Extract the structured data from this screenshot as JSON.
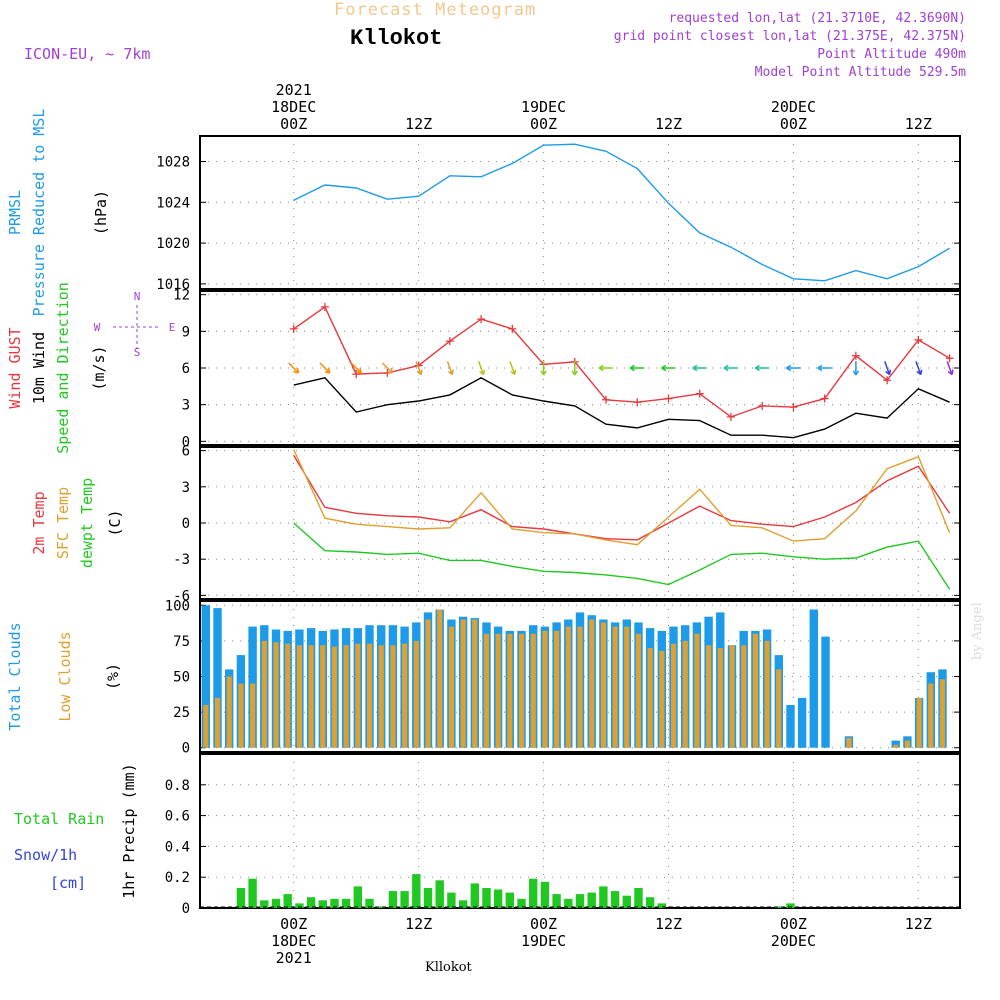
{
  "header": {
    "title": "Forecast Meteogram",
    "location": "Kllokot",
    "model": "ICON-EU, ~ 7km",
    "requested": "requested lon,lat (21.3710E, 42.3690N)",
    "grid_point": "grid point closest lon,lat (21.375E, 42.375N)",
    "point_altitude": "Point Altitude 490m",
    "model_altitude": "Model Point Altitude 529.5m",
    "watermark": "by Angel",
    "footer_location": "Kllokot"
  },
  "colors": {
    "blue": "#1e9be8",
    "red": "#e8383d",
    "orange": "#e0a030",
    "green": "#22c822",
    "purple": "#a040d0",
    "snow": "#3344dd"
  },
  "chart_data": [
    {
      "type": "line",
      "panel": "pressure",
      "ylabels": [
        "PRMSL",
        "Pressure Reduced to MSL",
        "(hPa)"
      ],
      "ylim": [
        1015.5,
        1030.5
      ],
      "yticks": [
        1016,
        1020,
        1024,
        1028
      ],
      "x": [
        0,
        3,
        6,
        9,
        12,
        15,
        18,
        21,
        24,
        27,
        30,
        33,
        36,
        39,
        42,
        45,
        48,
        51,
        54,
        57,
        60,
        63
      ],
      "series": [
        {
          "name": "PRMSL",
          "color": "blue",
          "values": [
            1024.2,
            1025.7,
            1025.4,
            1024.3,
            1024.6,
            1026.6,
            1026.5,
            1027.8,
            1029.6,
            1029.7,
            1029.0,
            1027.3,
            1023.9,
            1021.0,
            1019.6,
            1017.9,
            1016.5,
            1016.3,
            1017.3,
            1016.5,
            1017.7,
            1019.5
          ]
        }
      ]
    },
    {
      "type": "line",
      "panel": "wind",
      "ylabels": [
        "Wind GUST",
        "10m Wind",
        "Speed and Direction",
        "(m/s)"
      ],
      "direction_legend": [
        "N",
        "S",
        "W",
        "E"
      ],
      "ylim": [
        -0.3,
        12.3
      ],
      "yticks": [
        0,
        3,
        6,
        9,
        12
      ],
      "x": [
        0,
        3,
        6,
        9,
        12,
        15,
        18,
        21,
        24,
        27,
        30,
        33,
        36,
        39,
        42,
        45,
        48,
        51,
        54,
        57,
        60,
        63
      ],
      "series": [
        {
          "name": "Wind GUST",
          "color": "red",
          "values": [
            9.2,
            11.0,
            5.5,
            5.6,
            6.2,
            8.2,
            10.0,
            9.2,
            6.3,
            6.5,
            3.4,
            3.2,
            3.5,
            3.9,
            2.0,
            2.9,
            2.8,
            3.5,
            7.0,
            5.0,
            8.3,
            6.8
          ]
        },
        {
          "name": "10m Wind",
          "color": "black",
          "values": [
            4.6,
            5.2,
            2.4,
            3.0,
            3.3,
            3.8,
            5.2,
            3.8,
            3.3,
            2.9,
            1.4,
            1.1,
            1.8,
            1.7,
            0.5,
            0.5,
            0.3,
            1.0,
            2.3,
            1.9,
            4.3,
            3.2
          ]
        }
      ],
      "wind_dir_deg": [
        45,
        45,
        45,
        45,
        20,
        20,
        20,
        20,
        0,
        0,
        270,
        270,
        270,
        270,
        270,
        270,
        270,
        270,
        0,
        20,
        20,
        20
      ]
    },
    {
      "type": "line",
      "panel": "temperature",
      "ylabels": [
        "2m Temp",
        "SFC Temp",
        "dewpt Temp",
        "(C)"
      ],
      "ylim": [
        -6.3,
        6.3
      ],
      "yticks": [
        -6,
        -3,
        0,
        3,
        6
      ],
      "x": [
        0,
        3,
        6,
        9,
        12,
        15,
        18,
        21,
        24,
        27,
        30,
        33,
        36,
        39,
        42,
        45,
        48,
        51,
        54,
        57,
        60,
        63
      ],
      "series": [
        {
          "name": "2m Temp",
          "color": "red",
          "values": [
            5.6,
            1.3,
            0.8,
            0.6,
            0.5,
            0.1,
            1.1,
            -0.3,
            -0.5,
            -0.9,
            -1.3,
            -1.4,
            0.0,
            1.4,
            0.2,
            -0.1,
            -0.3,
            0.5,
            1.7,
            3.5,
            4.7,
            0.8
          ]
        },
        {
          "name": "SFC Temp",
          "color": "orange",
          "values": [
            6.1,
            0.4,
            -0.1,
            -0.3,
            -0.5,
            -0.4,
            2.5,
            -0.5,
            -0.8,
            -0.9,
            -1.4,
            -1.8,
            0.5,
            2.8,
            -0.2,
            -0.4,
            -1.5,
            -1.3,
            1.0,
            4.5,
            5.5,
            -0.8
          ]
        },
        {
          "name": "dewpt Temp",
          "color": "green",
          "values": [
            0.0,
            -2.3,
            -2.4,
            -2.6,
            -2.5,
            -3.1,
            -3.1,
            -3.6,
            -4.0,
            -4.1,
            -4.3,
            -4.6,
            -5.1,
            -3.9,
            -2.6,
            -2.5,
            -2.8,
            -3.0,
            -2.9,
            -2.0,
            -1.5,
            -5.5
          ]
        }
      ]
    },
    {
      "type": "bar",
      "panel": "clouds",
      "ylabels": [
        "Total Clouds",
        "Low Clouds",
        "(%)"
      ],
      "ylim": [
        -3,
        103
      ],
      "yticks": [
        0,
        25,
        50,
        75,
        100
      ],
      "x": [
        0,
        1,
        2,
        3,
        4,
        5,
        6,
        7,
        8,
        9,
        10,
        11,
        12,
        13,
        14,
        15,
        16,
        17,
        18,
        19,
        20,
        21,
        22,
        23,
        24,
        25,
        26,
        27,
        28,
        29,
        30,
        31,
        32,
        33,
        34,
        35,
        36,
        37,
        38,
        39,
        40,
        41,
        42,
        43,
        44,
        45,
        46,
        47,
        48,
        49,
        50,
        51,
        52,
        53,
        54,
        55,
        56,
        57,
        58,
        59,
        60,
        61,
        62,
        63
      ],
      "series": [
        {
          "name": "Total Clouds",
          "color": "blue",
          "values": [
            100,
            98,
            55,
            65,
            85,
            86,
            83,
            82,
            83,
            84,
            82,
            83,
            84,
            84,
            86,
            86,
            86,
            85,
            88,
            95,
            97,
            90,
            92,
            91,
            88,
            85,
            82,
            82,
            86,
            85,
            88,
            90,
            95,
            93,
            90,
            88,
            90,
            88,
            84,
            82,
            85,
            86,
            88,
            92,
            95,
            72,
            82,
            82,
            83,
            65,
            30,
            35,
            97,
            78,
            0,
            8,
            0,
            0,
            0,
            5,
            8,
            35,
            53,
            55
          ]
        },
        {
          "name": "Low Clouds",
          "color": "orange",
          "values": [
            30,
            35,
            50,
            45,
            45,
            75,
            74,
            73,
            72,
            72,
            72,
            71,
            72,
            73,
            73,
            72,
            72,
            73,
            75,
            90,
            97,
            85,
            90,
            90,
            80,
            80,
            80,
            80,
            80,
            82,
            82,
            85,
            85,
            90,
            88,
            85,
            85,
            80,
            70,
            68,
            73,
            75,
            80,
            72,
            70,
            72,
            72,
            80,
            75,
            55,
            0,
            0,
            0,
            0,
            0,
            7,
            0,
            0,
            0,
            2,
            5,
            35,
            45,
            48
          ]
        }
      ]
    },
    {
      "type": "bar",
      "panel": "precip",
      "ylabels": [
        "Total Rain",
        "Snow/1h",
        "[cm]",
        "1hr Precip (mm)"
      ],
      "ylim": [
        0,
        1.0
      ],
      "yticks": [
        0,
        0.2,
        0.4,
        0.6,
        0.8
      ],
      "x": [
        0,
        1,
        2,
        3,
        4,
        5,
        6,
        7,
        8,
        9,
        10,
        11,
        12,
        13,
        14,
        15,
        16,
        17,
        18,
        19,
        20,
        21,
        22,
        23,
        24,
        25,
        26,
        27,
        28,
        29,
        30,
        31,
        32,
        33,
        34,
        35,
        36,
        37,
        38,
        39,
        40,
        41,
        42,
        43,
        44,
        45,
        46,
        47,
        48,
        49,
        50,
        51,
        52,
        53,
        54,
        55,
        56,
        57,
        58,
        59,
        60,
        61,
        62,
        63
      ],
      "series": [
        {
          "name": "Total Rain",
          "color": "green",
          "values": [
            0,
            0,
            0,
            0.13,
            0.19,
            0.05,
            0.06,
            0.09,
            0.03,
            0.07,
            0.05,
            0.06,
            0.06,
            0.14,
            0.06,
            0.01,
            0.11,
            0.11,
            0.22,
            0.13,
            0.18,
            0.1,
            0.05,
            0.16,
            0.13,
            0.12,
            0.1,
            0.06,
            0.19,
            0.17,
            0.09,
            0.06,
            0.09,
            0.1,
            0.14,
            0.11,
            0.08,
            0.13,
            0.07,
            0.03,
            0,
            0,
            0,
            0,
            0,
            0,
            0,
            0,
            0,
            0.01,
            0.03,
            0,
            0,
            0,
            0,
            0,
            0,
            0,
            0,
            0,
            0,
            0,
            0,
            0
          ]
        },
        {
          "name": "Snow/1h",
          "color": "snow",
          "values": [
            0,
            0,
            0,
            0,
            0,
            0,
            0,
            0,
            0,
            0,
            0,
            0,
            0,
            0,
            0,
            0,
            0,
            0,
            0,
            0,
            0,
            0,
            0,
            0,
            0,
            0,
            0,
            0,
            0,
            0,
            0,
            0,
            0,
            0,
            0,
            0,
            0,
            0,
            0,
            0,
            0,
            0,
            0,
            0,
            0,
            0,
            0,
            0,
            0,
            0,
            0,
            0,
            0,
            0,
            0,
            0,
            0,
            0,
            0,
            0,
            0,
            0,
            0,
            0
          ]
        }
      ]
    }
  ],
  "time_axis": {
    "top_labels": [
      {
        "lines": [
          "2021",
          "18DEC",
          "00Z"
        ]
      },
      {
        "lines": [
          "12Z"
        ]
      },
      {
        "lines": [
          "19DEC",
          "00Z"
        ]
      },
      {
        "lines": [
          "12Z"
        ]
      },
      {
        "lines": [
          "20DEC",
          "00Z"
        ]
      },
      {
        "lines": [
          "12Z"
        ]
      }
    ],
    "bottom_labels": [
      {
        "lines": [
          "00Z",
          "18DEC",
          "2021"
        ]
      },
      {
        "lines": [
          "12Z"
        ]
      },
      {
        "lines": [
          "00Z",
          "19DEC"
        ]
      },
      {
        "lines": [
          "12Z"
        ]
      },
      {
        "lines": [
          "00Z",
          "20DEC"
        ]
      },
      {
        "lines": [
          "12Z"
        ]
      }
    ],
    "label_hours": [
      0,
      12,
      24,
      36,
      48,
      60
    ]
  }
}
